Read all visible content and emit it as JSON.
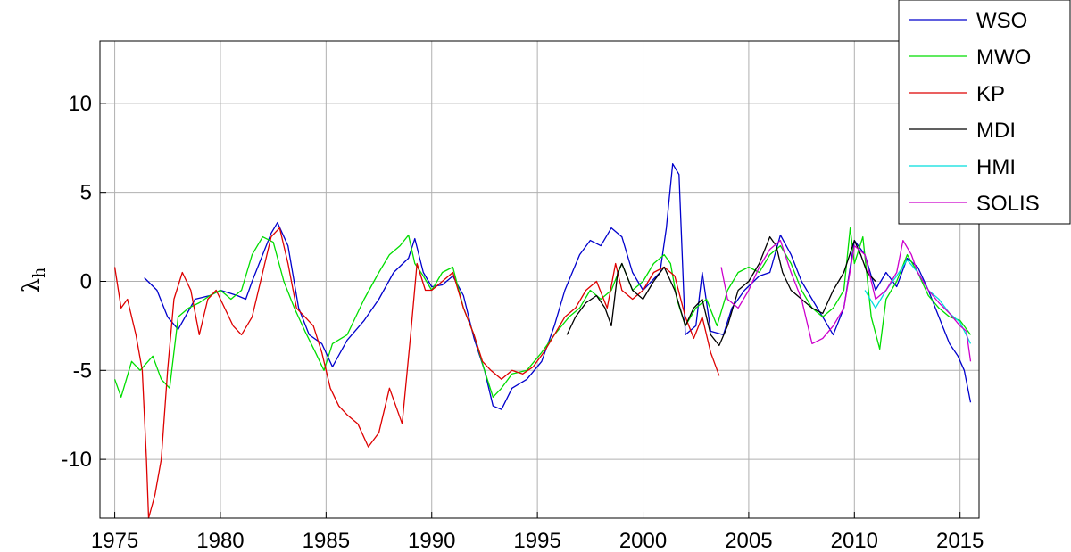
{
  "chart_data": {
    "type": "line",
    "xlabel": "",
    "ylabel": "λ",
    "ylabel_subscript": "h",
    "xlim": [
      1974.3,
      2015.9
    ],
    "ylim": [
      -13.3,
      13.5
    ],
    "xticks": [
      "1975",
      "1980",
      "1985",
      "1990",
      "1995",
      "2000",
      "2005",
      "2010",
      "2015"
    ],
    "yticks": [
      "10",
      "5",
      "0",
      "-5",
      "-10"
    ],
    "grid": true,
    "legend_position": "top-right",
    "series": [
      {
        "name": "WSO",
        "color": "#0000cc",
        "x": [
          1976.4,
          1977.0,
          1977.5,
          1978.0,
          1978.8,
          1979.5,
          1980.0,
          1980.8,
          1981.2,
          1981.5,
          1982.0,
          1982.4,
          1982.7,
          1983.2,
          1983.7,
          1984.2,
          1984.8,
          1985.3,
          1986.0,
          1986.8,
          1987.5,
          1988.2,
          1988.9,
          1989.2,
          1989.6,
          1990.0,
          1990.5,
          1991.0,
          1991.5,
          1992.0,
          1992.5,
          1992.9,
          1993.3,
          1993.8,
          1994.5,
          1995.2,
          1995.8,
          1996.3,
          1997.0,
          1997.5,
          1998.0,
          1998.5,
          1999.0,
          1999.5,
          2000.0,
          2000.4,
          2000.8,
          2001.1,
          2001.4,
          2001.7,
          2002.0,
          2002.5,
          2002.8,
          2003.2,
          2003.8,
          2004.2,
          2004.8,
          2005.5,
          2006.0,
          2006.5,
          2007.0,
          2007.5,
          2008.0,
          2008.5,
          2009.0,
          2009.5,
          2010.0,
          2010.5,
          2011.0,
          2011.5,
          2012.0,
          2012.5,
          2013.0,
          2013.5,
          2014.0,
          2014.5,
          2014.9,
          2015.2,
          2015.5
        ],
        "y": [
          0.2,
          -0.5,
          -2.0,
          -2.7,
          -1.0,
          -0.8,
          -0.5,
          -0.8,
          -1.0,
          0.0,
          1.5,
          2.7,
          3.3,
          2.0,
          -1.5,
          -3.0,
          -3.5,
          -4.8,
          -3.3,
          -2.2,
          -1.0,
          0.5,
          1.3,
          2.4,
          0.5,
          -0.3,
          -0.2,
          0.3,
          -0.8,
          -3.2,
          -5.0,
          -7.0,
          -7.2,
          -6.0,
          -5.5,
          -4.5,
          -2.5,
          -0.5,
          1.5,
          2.3,
          2.0,
          3.0,
          2.5,
          0.5,
          -0.5,
          0.0,
          0.5,
          3.0,
          6.6,
          6.0,
          -3.0,
          -2.5,
          0.5,
          -2.8,
          -3.0,
          -1.5,
          -0.5,
          0.3,
          0.5,
          2.6,
          1.5,
          0.0,
          -1.0,
          -2.0,
          -3.0,
          -1.5,
          2.3,
          1.5,
          -0.5,
          0.5,
          -0.3,
          1.3,
          0.8,
          -0.5,
          -2.0,
          -3.5,
          -4.2,
          -5.0,
          -6.8
        ]
      },
      {
        "name": "MWO",
        "color": "#00dd00",
        "x": [
          1975.0,
          1975.3,
          1975.8,
          1976.2,
          1976.8,
          1977.2,
          1977.6,
          1978.0,
          1978.5,
          1979.0,
          1979.5,
          1980.0,
          1980.5,
          1981.0,
          1981.5,
          1982.0,
          1982.5,
          1983.0,
          1983.5,
          1984.0,
          1984.5,
          1984.9,
          1985.3,
          1986.0,
          1986.8,
          1987.5,
          1988.0,
          1988.5,
          1988.9,
          1989.2,
          1989.6,
          1990.0,
          1990.5,
          1991.0,
          1991.5,
          1992.0,
          1992.5,
          1992.9,
          1993.3,
          1993.8,
          1994.5,
          1995.2,
          1995.8,
          1996.5,
          1997.0,
          1997.5,
          1998.0,
          1998.5,
          1999.0,
          1999.5,
          2000.0,
          2000.5,
          2001.0,
          2001.3,
          2001.6,
          2002.0,
          2002.5,
          2003.0,
          2003.5,
          2004.0,
          2004.5,
          2005.0,
          2005.5,
          2006.0,
          2006.5,
          2007.0,
          2007.5,
          2008.0,
          2008.5,
          2009.0,
          2009.5,
          2009.8,
          2010.0,
          2010.4,
          2010.8,
          2011.2,
          2011.5,
          2012.0,
          2012.5,
          2013.0,
          2013.5,
          2014.0,
          2014.5,
          2015.0,
          2015.5
        ],
        "y": [
          -5.5,
          -6.5,
          -4.5,
          -5.0,
          -4.2,
          -5.5,
          -6.0,
          -2.0,
          -1.5,
          -1.2,
          -0.8,
          -0.5,
          -1.0,
          -0.5,
          1.5,
          2.5,
          2.2,
          0.0,
          -1.5,
          -2.8,
          -4.0,
          -5.0,
          -3.5,
          -3.0,
          -1.0,
          0.5,
          1.5,
          2.0,
          2.6,
          1.0,
          0.3,
          -0.5,
          0.5,
          0.8,
          -1.5,
          -3.0,
          -5.0,
          -6.5,
          -6.0,
          -5.2,
          -5.0,
          -4.0,
          -3.0,
          -2.0,
          -1.5,
          -0.5,
          -1.0,
          -0.5,
          1.0,
          -0.5,
          0.0,
          1.0,
          1.5,
          1.0,
          -1.0,
          -2.5,
          -1.5,
          -1.0,
          -2.5,
          -0.5,
          0.5,
          0.8,
          0.5,
          1.5,
          2.0,
          1.0,
          -0.5,
          -1.5,
          -2.0,
          -1.5,
          -0.5,
          3.0,
          1.0,
          2.5,
          -2.0,
          -3.8,
          -1.0,
          0.0,
          1.5,
          0.5,
          -0.8,
          -1.5,
          -2.0,
          -2.2,
          -3.0
        ]
      },
      {
        "name": "KP",
        "color": "#dd0000",
        "x": [
          1975.0,
          1975.3,
          1975.6,
          1976.0,
          1976.3,
          1976.5,
          1976.6,
          1976.9,
          1977.2,
          1977.5,
          1977.8,
          1978.2,
          1978.6,
          1979.0,
          1979.4,
          1979.8,
          1980.2,
          1980.6,
          1981.0,
          1981.5,
          1982.0,
          1982.4,
          1982.8,
          1983.2,
          1983.6,
          1984.0,
          1984.4,
          1984.8,
          1985.2,
          1985.6,
          1986.0,
          1986.5,
          1987.0,
          1987.5,
          1988.0,
          1988.3,
          1988.6,
          1989.0,
          1989.3,
          1989.7,
          1990.0,
          1990.5,
          1991.0,
          1991.5,
          1992.0,
          1992.4,
          1992.8,
          1993.3,
          1993.8,
          1994.3,
          1994.8,
          1995.3,
          1995.8,
          1996.3,
          1996.8,
          1997.3,
          1997.8,
          1998.3,
          1998.7,
          1999.0,
          1999.5,
          2000.0,
          2000.5,
          2001.0,
          2001.5,
          2002.0,
          2002.4,
          2002.8,
          2003.2,
          2003.6
        ],
        "y": [
          0.8,
          -1.5,
          -1.0,
          -3.0,
          -5.0,
          -10.0,
          -13.3,
          -12.0,
          -10.0,
          -5.0,
          -1.0,
          0.5,
          -0.5,
          -3.0,
          -1.0,
          -0.5,
          -1.5,
          -2.5,
          -3.0,
          -2.0,
          0.5,
          2.5,
          3.0,
          1.0,
          -1.5,
          -2.0,
          -2.5,
          -4.0,
          -6.0,
          -7.0,
          -7.5,
          -8.0,
          -9.3,
          -8.5,
          -6.0,
          -7.0,
          -8.0,
          -3.0,
          1.0,
          -0.5,
          -0.5,
          0.0,
          0.5,
          -1.5,
          -3.0,
          -4.5,
          -5.0,
          -5.5,
          -5.0,
          -5.2,
          -4.8,
          -4.0,
          -3.0,
          -2.0,
          -1.5,
          -0.5,
          0.0,
          -1.5,
          1.0,
          -0.5,
          -1.0,
          -0.5,
          0.5,
          0.8,
          0.3,
          -2.0,
          -3.2,
          -2.0,
          -4.0,
          -5.3
        ]
      },
      {
        "name": "MDI",
        "color": "#000000",
        "x": [
          1996.4,
          1996.8,
          1997.3,
          1997.8,
          1998.2,
          1998.5,
          1998.8,
          1999.0,
          1999.5,
          2000.0,
          2000.5,
          2001.0,
          2001.5,
          2002.0,
          2002.4,
          2002.8,
          2003.2,
          2003.6,
          2004.0,
          2004.5,
          2005.0,
          2005.5,
          2006.0,
          2006.3,
          2006.6,
          2007.0,
          2007.5,
          2008.0,
          2008.5,
          2009.0,
          2009.5,
          2010.0,
          2010.3,
          2010.6,
          2011.0
        ],
        "y": [
          -3.0,
          -2.0,
          -1.2,
          -0.8,
          -1.5,
          -2.5,
          0.5,
          1.0,
          -0.5,
          -1.0,
          0.0,
          0.8,
          -0.5,
          -2.5,
          -1.5,
          -1.0,
          -3.0,
          -3.6,
          -2.5,
          -0.5,
          0.0,
          1.0,
          2.5,
          2.0,
          0.5,
          -0.5,
          -1.0,
          -1.5,
          -1.8,
          -0.5,
          0.5,
          2.3,
          1.5,
          0.5,
          0.0
        ]
      },
      {
        "name": "HMI",
        "color": "#00dddd",
        "x": [
          2010.5,
          2011.0,
          2011.5,
          2012.0,
          2012.5,
          2013.0,
          2013.5,
          2014.0,
          2014.5,
          2015.0,
          2015.5
        ],
        "y": [
          -0.5,
          -1.5,
          -0.5,
          0.3,
          1.2,
          0.5,
          -0.5,
          -1.0,
          -1.8,
          -2.3,
          -3.5
        ]
      },
      {
        "name": "SOLIS",
        "color": "#cc00cc",
        "x": [
          2003.7,
          2004.0,
          2004.5,
          2005.0,
          2005.5,
          2006.0,
          2006.5,
          2007.0,
          2007.5,
          2008.0,
          2008.5,
          2009.0,
          2009.5,
          2010.0,
          2010.5,
          2011.0,
          2011.5,
          2012.0,
          2012.3,
          2012.7,
          2013.0,
          2013.5,
          2014.0,
          2014.5,
          2015.0,
          2015.3,
          2015.5
        ],
        "y": [
          0.8,
          -1.0,
          -1.5,
          -0.5,
          0.8,
          1.8,
          2.3,
          0.5,
          -1.0,
          -3.5,
          -3.2,
          -2.5,
          -1.5,
          2.0,
          1.5,
          -1.0,
          -0.5,
          0.5,
          2.3,
          1.5,
          0.5,
          -0.5,
          -1.2,
          -1.8,
          -2.5,
          -2.8,
          -4.5
        ]
      }
    ]
  }
}
